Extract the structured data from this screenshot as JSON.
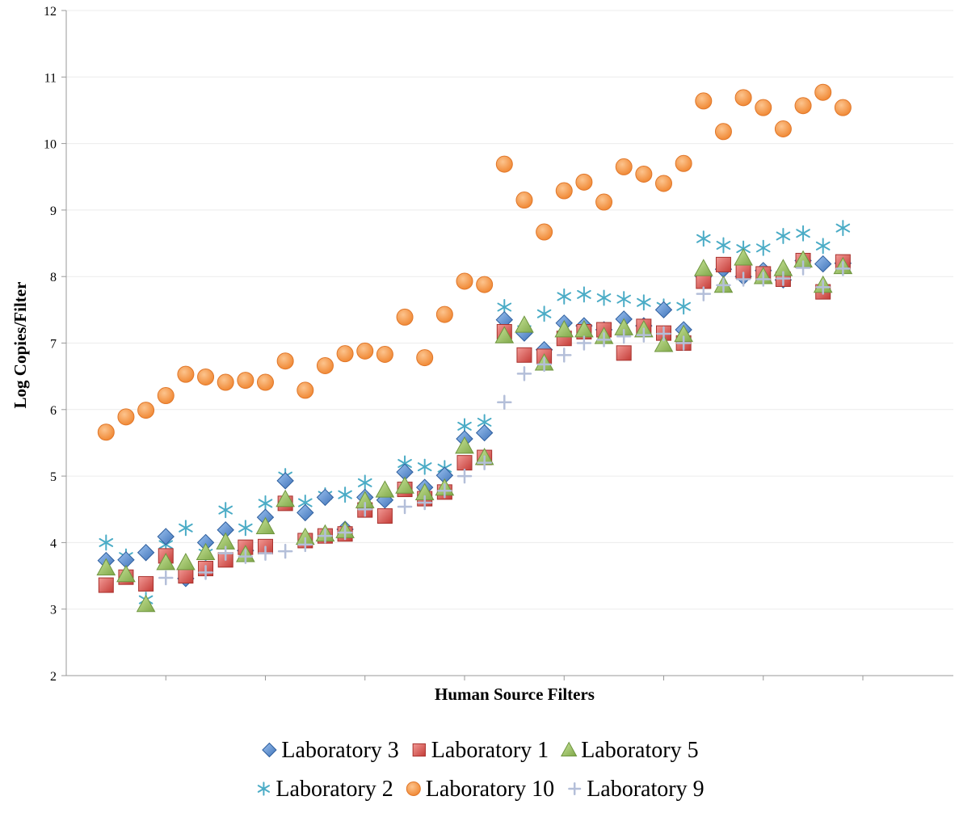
{
  "chart_data": {
    "type": "scatter",
    "title": "",
    "xlabel": "Human Source Filters",
    "ylabel": "Log Copies/Filter",
    "xlim": [
      0,
      44
    ],
    "ylim": [
      2,
      12
    ],
    "yticks": [
      "2",
      "3",
      "4",
      "5",
      "6",
      "7",
      "8",
      "9",
      "10",
      "11",
      "12"
    ],
    "grid": "horizontal",
    "legend_position": "bottom",
    "series": [
      {
        "name": "Laboratory 3",
        "marker": "diamond",
        "color": "#5b8fd1",
        "x": [
          2,
          3,
          4,
          5,
          6,
          7,
          8,
          9,
          10,
          11,
          12,
          13,
          14,
          15,
          16,
          17,
          18,
          19,
          20,
          21,
          22,
          23,
          24,
          25,
          26,
          27,
          28,
          29,
          30,
          31,
          32,
          33,
          34,
          35,
          36,
          37,
          38,
          39,
          40,
          41,
          42
        ],
        "y": [
          3.73,
          3.74,
          3.85,
          4.09,
          3.46,
          4.0,
          4.19,
          3.88,
          4.38,
          4.93,
          4.45,
          4.68,
          4.2,
          4.68,
          4.64,
          5.06,
          4.83,
          5.01,
          5.56,
          5.65,
          7.35,
          7.15,
          6.9,
          7.3,
          7.26,
          7.2,
          7.36,
          7.26,
          7.5,
          7.2,
          8.0,
          8.11,
          8.0,
          8.09,
          7.95,
          8.24,
          8.19,
          8.2,
          null,
          null,
          null
        ]
      },
      {
        "name": "Laboratory 1",
        "marker": "square",
        "color": "#d9534f",
        "x": [
          2,
          3,
          4,
          5,
          6,
          7,
          8,
          9,
          10,
          11,
          12,
          13,
          14,
          15,
          16,
          17,
          18,
          19,
          20,
          21,
          22,
          23,
          24,
          25,
          26,
          27,
          28,
          29,
          30,
          31,
          32,
          33,
          34,
          35,
          36,
          37,
          38,
          39
        ],
        "y": [
          3.36,
          3.48,
          3.38,
          3.8,
          3.5,
          3.61,
          3.74,
          3.93,
          3.94,
          4.59,
          4.03,
          4.1,
          4.13,
          4.49,
          4.4,
          4.8,
          4.66,
          4.76,
          5.2,
          5.28,
          7.17,
          6.82,
          6.8,
          7.07,
          7.17,
          7.2,
          6.85,
          7.25,
          7.15,
          7.0,
          7.93,
          8.18,
          8.08,
          8.04,
          7.96,
          8.24,
          7.77,
          8.22
        ]
      },
      {
        "name": "Laboratory 5",
        "marker": "triangle",
        "color": "#94bf5a",
        "x": [
          2,
          3,
          4,
          5,
          6,
          7,
          8,
          9,
          10,
          11,
          12,
          13,
          14,
          15,
          16,
          17,
          18,
          19,
          20,
          21,
          22,
          23,
          24,
          25,
          26,
          27,
          28,
          29,
          30,
          31,
          32,
          33,
          34,
          35,
          36,
          37,
          38,
          39
        ],
        "y": [
          3.62,
          3.52,
          3.07,
          3.7,
          3.7,
          3.85,
          4.01,
          3.82,
          4.24,
          4.65,
          4.08,
          4.13,
          4.18,
          4.63,
          4.79,
          4.85,
          4.75,
          4.82,
          5.45,
          5.28,
          7.11,
          7.27,
          6.7,
          7.2,
          7.2,
          7.1,
          7.23,
          7.2,
          6.98,
          7.13,
          8.12,
          7.87,
          8.28,
          8.0,
          8.12,
          8.25,
          7.87,
          8.15
        ]
      },
      {
        "name": "Laboratory 2",
        "marker": "asterisk",
        "color": "#4bacc6",
        "x": [
          2,
          3,
          4,
          5,
          6,
          7,
          8,
          9,
          10,
          11,
          12,
          13,
          14,
          15,
          16,
          17,
          18,
          19,
          20,
          21,
          22,
          23,
          24,
          25,
          26,
          27,
          28,
          29,
          30,
          31,
          32,
          33,
          34,
          35,
          36,
          37,
          38,
          39
        ],
        "y": [
          4.0,
          3.79,
          3.14,
          3.97,
          4.22,
          3.84,
          4.49,
          4.22,
          4.59,
          5.0,
          4.6,
          4.71,
          4.72,
          4.9,
          4.67,
          5.19,
          5.14,
          5.12,
          5.75,
          5.81,
          7.54,
          7.2,
          7.44,
          7.7,
          7.73,
          7.68,
          7.66,
          7.61,
          7.55,
          7.55,
          8.57,
          8.47,
          8.42,
          8.43,
          8.61,
          8.65,
          8.46,
          8.73
        ]
      },
      {
        "name": "Laboratory 10",
        "marker": "circle",
        "color": "#f79646",
        "x": [
          2,
          3,
          4,
          5,
          6,
          7,
          8,
          9,
          10,
          11,
          12,
          13,
          14,
          15,
          16,
          17,
          18,
          19,
          20,
          21,
          22,
          23,
          24,
          25,
          26,
          27,
          28,
          29,
          30,
          31,
          32,
          33,
          34,
          35,
          36,
          37,
          38,
          39
        ],
        "y": [
          5.66,
          5.89,
          5.99,
          6.21,
          6.53,
          6.49,
          6.41,
          6.44,
          6.41,
          6.73,
          6.29,
          6.66,
          6.84,
          6.88,
          6.83,
          7.39,
          6.78,
          7.43,
          7.93,
          7.88,
          9.69,
          9.15,
          8.67,
          9.29,
          9.42,
          9.12,
          9.65,
          9.54,
          9.4,
          9.7,
          10.64,
          10.18,
          10.69,
          10.54,
          10.22,
          10.57,
          10.77,
          10.54
        ]
      },
      {
        "name": "Laboratory 9",
        "marker": "plus",
        "color": "#b4bfd9",
        "x": [
          5,
          7,
          8,
          9,
          10,
          11,
          12,
          13,
          14,
          15,
          17,
          18,
          19,
          20,
          21,
          22,
          23,
          24,
          25,
          26,
          27,
          28,
          29,
          30,
          31,
          32,
          33,
          34,
          35,
          36,
          37,
          38,
          39
        ],
        "y": [
          3.47,
          3.55,
          3.84,
          3.79,
          3.84,
          3.87,
          3.97,
          4.1,
          4.15,
          4.5,
          4.54,
          4.6,
          4.78,
          5.0,
          5.2,
          6.11,
          6.54,
          6.68,
          6.82,
          7.0,
          7.05,
          7.1,
          7.12,
          7.14,
          7.0,
          7.74,
          7.87,
          7.96,
          7.96,
          7.97,
          8.13,
          7.84,
          8.12
        ]
      }
    ]
  }
}
